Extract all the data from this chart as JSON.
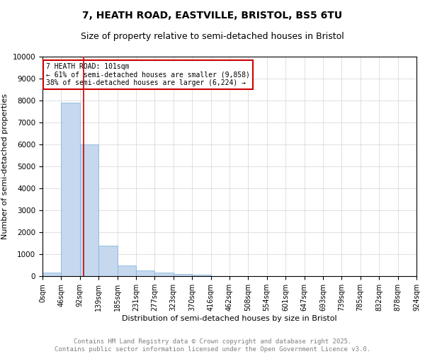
{
  "title": "7, HEATH ROAD, EASTVILLE, BRISTOL, BS5 6TU",
  "subtitle": "Size of property relative to semi-detached houses in Bristol",
  "xlabel": "Distribution of semi-detached houses by size in Bristol",
  "ylabel": "Number of semi-detached properties",
  "bar_values": [
    150,
    7900,
    6000,
    1400,
    500,
    250,
    150,
    100,
    50,
    10,
    5,
    3,
    2,
    1,
    1,
    0,
    0,
    0,
    0,
    0
  ],
  "bin_edges": [
    0,
    46,
    92,
    139,
    185,
    231,
    277,
    323,
    370,
    416,
    462,
    508,
    554,
    601,
    647,
    693,
    739,
    785,
    832,
    878,
    924
  ],
  "x_tick_labels": [
    "0sqm",
    "46sqm",
    "92sqm",
    "139sqm",
    "185sqm",
    "231sqm",
    "277sqm",
    "323sqm",
    "370sqm",
    "416sqm",
    "462sqm",
    "508sqm",
    "554sqm",
    "601sqm",
    "647sqm",
    "693sqm",
    "739sqm",
    "785sqm",
    "832sqm",
    "878sqm",
    "924sqm"
  ],
  "ylim": [
    0,
    10000
  ],
  "bar_color": "#c5d8ee",
  "bar_edgecolor": "#7aafd4",
  "vline_x": 101,
  "vline_color": "#cc0000",
  "annotation_title": "7 HEATH ROAD: 101sqm",
  "annotation_line1": "← 61% of semi-detached houses are smaller (9,858)",
  "annotation_line2": "38% of semi-detached houses are larger (6,224) →",
  "annotation_box_color": "#cc0000",
  "footer_line1": "Contains HM Land Registry data © Crown copyright and database right 2025.",
  "footer_line2": "Contains public sector information licensed under the Open Government Licence v3.0.",
  "title_fontsize": 10,
  "subtitle_fontsize": 9,
  "axis_label_fontsize": 8,
  "tick_fontsize": 7,
  "annotation_fontsize": 7,
  "footer_fontsize": 6.5,
  "yticks": [
    0,
    1000,
    2000,
    3000,
    4000,
    5000,
    6000,
    7000,
    8000,
    9000,
    10000
  ]
}
